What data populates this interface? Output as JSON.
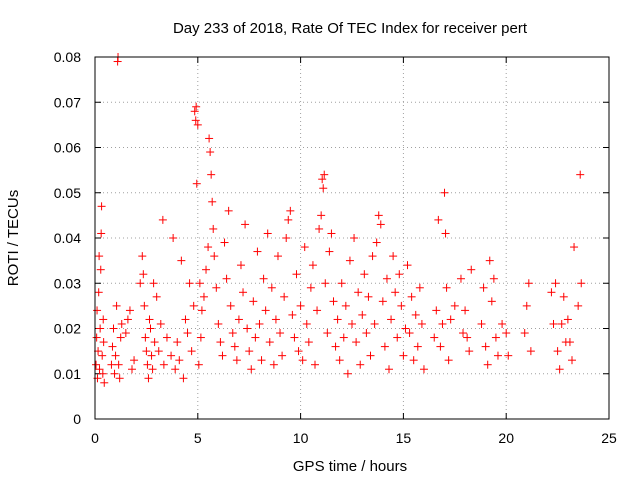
{
  "chart_data": {
    "type": "scatter",
    "title": "Day 233 of 2018, Rate Of TEC Index for receiver pert",
    "xlabel": "GPS time / hours",
    "ylabel": "ROTI / TECUs",
    "xlim": [
      0,
      25
    ],
    "ylim": [
      0,
      0.08
    ],
    "x_ticks": [
      0,
      5,
      10,
      15,
      20,
      25
    ],
    "y_ticks": [
      0,
      0.01,
      0.02,
      0.03,
      0.04,
      0.05,
      0.06,
      0.07,
      0.08
    ],
    "x_tick_labels": [
      "0",
      "5",
      "10",
      "15",
      "20",
      "25"
    ],
    "y_tick_labels": [
      "0",
      "0.01",
      "0.02",
      "0.03",
      "0.04",
      "0.05",
      "0.06",
      "0.07",
      "0.08"
    ],
    "grid": true,
    "marker": "+",
    "color": "#ff0000",
    "series": [
      {
        "points": [
          [
            0.05,
            0.012
          ],
          [
            0.08,
            0.018
          ],
          [
            0.1,
            0.024
          ],
          [
            0.12,
            0.009
          ],
          [
            0.15,
            0.015
          ],
          [
            0.18,
            0.028
          ],
          [
            0.2,
            0.036
          ],
          [
            0.22,
            0.011
          ],
          [
            0.25,
            0.02
          ],
          [
            0.28,
            0.033
          ],
          [
            0.3,
            0.041
          ],
          [
            0.32,
            0.047
          ],
          [
            0.35,
            0.014
          ],
          [
            0.38,
            0.01
          ],
          [
            0.4,
            0.022
          ],
          [
            0.42,
            0.017
          ],
          [
            0.45,
            0.008
          ],
          [
            0.8,
            0.012
          ],
          [
            0.85,
            0.016
          ],
          [
            0.9,
            0.02
          ],
          [
            0.95,
            0.01
          ],
          [
            1.0,
            0.014
          ],
          [
            1.05,
            0.025
          ],
          [
            1.1,
            0.079
          ],
          [
            1.12,
            0.08
          ],
          [
            1.15,
            0.012
          ],
          [
            1.2,
            0.009
          ],
          [
            1.25,
            0.018
          ],
          [
            1.3,
            0.021
          ],
          [
            1.5,
            0.019
          ],
          [
            1.6,
            0.022
          ],
          [
            1.7,
            0.024
          ],
          [
            1.8,
            0.011
          ],
          [
            1.9,
            0.013
          ],
          [
            2.2,
            0.03
          ],
          [
            2.3,
            0.036
          ],
          [
            2.35,
            0.032
          ],
          [
            2.4,
            0.025
          ],
          [
            2.45,
            0.018
          ],
          [
            2.5,
            0.015
          ],
          [
            2.55,
            0.012
          ],
          [
            2.6,
            0.009
          ],
          [
            2.65,
            0.022
          ],
          [
            2.7,
            0.02
          ],
          [
            2.75,
            0.014
          ],
          [
            2.8,
            0.011
          ],
          [
            2.85,
            0.03
          ],
          [
            2.9,
            0.017
          ],
          [
            3.0,
            0.027
          ],
          [
            3.1,
            0.015
          ],
          [
            3.2,
            0.021
          ],
          [
            3.3,
            0.044
          ],
          [
            3.35,
            0.012
          ],
          [
            3.5,
            0.018
          ],
          [
            3.7,
            0.014
          ],
          [
            3.8,
            0.04
          ],
          [
            3.9,
            0.011
          ],
          [
            4.0,
            0.017
          ],
          [
            4.1,
            0.013
          ],
          [
            4.2,
            0.035
          ],
          [
            4.3,
            0.009
          ],
          [
            4.4,
            0.022
          ],
          [
            4.5,
            0.019
          ],
          [
            4.6,
            0.03
          ],
          [
            4.7,
            0.015
          ],
          [
            4.8,
            0.025
          ],
          [
            4.85,
            0.068
          ],
          [
            4.9,
            0.066
          ],
          [
            4.92,
            0.069
          ],
          [
            4.95,
            0.052
          ],
          [
            5.0,
            0.065
          ],
          [
            5.05,
            0.012
          ],
          [
            5.1,
            0.03
          ],
          [
            5.15,
            0.018
          ],
          [
            5.2,
            0.024
          ],
          [
            5.3,
            0.027
          ],
          [
            5.4,
            0.033
          ],
          [
            5.5,
            0.038
          ],
          [
            5.55,
            0.062
          ],
          [
            5.6,
            0.059
          ],
          [
            5.65,
            0.054
          ],
          [
            5.7,
            0.048
          ],
          [
            5.75,
            0.042
          ],
          [
            5.8,
            0.036
          ],
          [
            5.9,
            0.029
          ],
          [
            6.0,
            0.021
          ],
          [
            6.1,
            0.017
          ],
          [
            6.2,
            0.014
          ],
          [
            6.3,
            0.039
          ],
          [
            6.4,
            0.031
          ],
          [
            6.5,
            0.046
          ],
          [
            6.6,
            0.025
          ],
          [
            6.7,
            0.019
          ],
          [
            6.8,
            0.016
          ],
          [
            6.9,
            0.013
          ],
          [
            7.0,
            0.022
          ],
          [
            7.1,
            0.034
          ],
          [
            7.2,
            0.028
          ],
          [
            7.3,
            0.043
          ],
          [
            7.4,
            0.02
          ],
          [
            7.5,
            0.015
          ],
          [
            7.6,
            0.011
          ],
          [
            7.7,
            0.026
          ],
          [
            7.8,
            0.018
          ],
          [
            7.9,
            0.037
          ],
          [
            8.0,
            0.021
          ],
          [
            8.1,
            0.013
          ],
          [
            8.2,
            0.031
          ],
          [
            8.3,
            0.024
          ],
          [
            8.4,
            0.041
          ],
          [
            8.5,
            0.017
          ],
          [
            8.6,
            0.029
          ],
          [
            8.7,
            0.012
          ],
          [
            8.8,
            0.022
          ],
          [
            8.9,
            0.036
          ],
          [
            9.0,
            0.019
          ],
          [
            9.1,
            0.014
          ],
          [
            9.2,
            0.027
          ],
          [
            9.3,
            0.04
          ],
          [
            9.4,
            0.044
          ],
          [
            9.5,
            0.046
          ],
          [
            9.6,
            0.023
          ],
          [
            9.7,
            0.018
          ],
          [
            9.8,
            0.032
          ],
          [
            9.9,
            0.015
          ],
          [
            10.0,
            0.025
          ],
          [
            10.1,
            0.013
          ],
          [
            10.2,
            0.038
          ],
          [
            10.3,
            0.021
          ],
          [
            10.4,
            0.017
          ],
          [
            10.5,
            0.029
          ],
          [
            10.6,
            0.034
          ],
          [
            10.7,
            0.012
          ],
          [
            10.8,
            0.024
          ],
          [
            10.9,
            0.042
          ],
          [
            11.0,
            0.045
          ],
          [
            11.05,
            0.053
          ],
          [
            11.1,
            0.051
          ],
          [
            11.15,
            0.054
          ],
          [
            11.2,
            0.03
          ],
          [
            11.3,
            0.019
          ],
          [
            11.4,
            0.037
          ],
          [
            11.5,
            0.041
          ],
          [
            11.6,
            0.026
          ],
          [
            11.7,
            0.016
          ],
          [
            11.8,
            0.022
          ],
          [
            11.9,
            0.013
          ],
          [
            12.0,
            0.03
          ],
          [
            12.1,
            0.018
          ],
          [
            12.2,
            0.025
          ],
          [
            12.3,
            0.01
          ],
          [
            12.4,
            0.035
          ],
          [
            12.5,
            0.021
          ],
          [
            12.6,
            0.04
          ],
          [
            12.7,
            0.017
          ],
          [
            12.8,
            0.028
          ],
          [
            12.9,
            0.012
          ],
          [
            13.0,
            0.023
          ],
          [
            13.1,
            0.032
          ],
          [
            13.2,
            0.019
          ],
          [
            13.3,
            0.027
          ],
          [
            13.4,
            0.014
          ],
          [
            13.5,
            0.036
          ],
          [
            13.6,
            0.021
          ],
          [
            13.7,
            0.039
          ],
          [
            13.8,
            0.045
          ],
          [
            13.9,
            0.043
          ],
          [
            14.0,
            0.026
          ],
          [
            14.1,
            0.016
          ],
          [
            14.2,
            0.031
          ],
          [
            14.3,
            0.011
          ],
          [
            14.4,
            0.022
          ],
          [
            14.5,
            0.036
          ],
          [
            14.6,
            0.028
          ],
          [
            14.7,
            0.018
          ],
          [
            14.8,
            0.032
          ],
          [
            14.9,
            0.025
          ],
          [
            15.0,
            0.014
          ],
          [
            15.1,
            0.02
          ],
          [
            15.2,
            0.034
          ],
          [
            15.3,
            0.019
          ],
          [
            15.4,
            0.027
          ],
          [
            15.5,
            0.013
          ],
          [
            15.6,
            0.023
          ],
          [
            15.7,
            0.016
          ],
          [
            15.8,
            0.029
          ],
          [
            15.9,
            0.021
          ],
          [
            16.0,
            0.011
          ],
          [
            16.5,
            0.018
          ],
          [
            16.6,
            0.024
          ],
          [
            16.7,
            0.044
          ],
          [
            16.8,
            0.016
          ],
          [
            16.9,
            0.021
          ],
          [
            17.0,
            0.05
          ],
          [
            17.05,
            0.041
          ],
          [
            17.1,
            0.029
          ],
          [
            17.2,
            0.013
          ],
          [
            17.3,
            0.022
          ],
          [
            17.5,
            0.025
          ],
          [
            17.8,
            0.031
          ],
          [
            17.9,
            0.019
          ],
          [
            18.0,
            0.024
          ],
          [
            18.1,
            0.018
          ],
          [
            18.2,
            0.015
          ],
          [
            18.3,
            0.033
          ],
          [
            18.8,
            0.021
          ],
          [
            18.9,
            0.029
          ],
          [
            19.0,
            0.016
          ],
          [
            19.1,
            0.012
          ],
          [
            19.2,
            0.035
          ],
          [
            19.3,
            0.026
          ],
          [
            19.4,
            0.031
          ],
          [
            19.5,
            0.018
          ],
          [
            19.6,
            0.014
          ],
          [
            19.8,
            0.021
          ],
          [
            20.0,
            0.019
          ],
          [
            20.1,
            0.014
          ],
          [
            20.9,
            0.019
          ],
          [
            21.0,
            0.025
          ],
          [
            21.1,
            0.03
          ],
          [
            21.2,
            0.015
          ],
          [
            22.2,
            0.028
          ],
          [
            22.3,
            0.021
          ],
          [
            22.4,
            0.03
          ],
          [
            22.5,
            0.015
          ],
          [
            22.6,
            0.011
          ],
          [
            22.7,
            0.021
          ],
          [
            22.8,
            0.027
          ],
          [
            22.9,
            0.017
          ],
          [
            23.0,
            0.022
          ],
          [
            23.1,
            0.017
          ],
          [
            23.2,
            0.013
          ],
          [
            23.3,
            0.038
          ],
          [
            23.5,
            0.025
          ],
          [
            23.6,
            0.054
          ],
          [
            23.65,
            0.03
          ]
        ]
      }
    ]
  }
}
